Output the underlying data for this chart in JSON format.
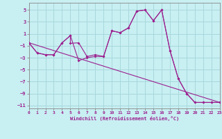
{
  "bg_color": "#c8eff2",
  "grid_color": "#a8d8dc",
  "line_color": "#9b1f8e",
  "spine_color": "#888888",
  "xlabel": "Windchill (Refroidissement éolien,°C)",
  "xlim": [
    0,
    23
  ],
  "ylim": [
    -11.5,
    6.2
  ],
  "yticks": [
    -11,
    -9,
    -7,
    -5,
    -3,
    -1,
    1,
    3,
    5
  ],
  "xticks": [
    0,
    1,
    2,
    3,
    4,
    5,
    6,
    7,
    8,
    9,
    10,
    11,
    12,
    13,
    14,
    15,
    16,
    17,
    18,
    19,
    20,
    21,
    22,
    23
  ],
  "line1_x": [
    0,
    1,
    2,
    3,
    4,
    5,
    6,
    7,
    8,
    9,
    10,
    11,
    12,
    13,
    14,
    15,
    16,
    17,
    18,
    19,
    20,
    21,
    22,
    23
  ],
  "line1_y": [
    -0.5,
    -2.2,
    -2.5,
    -2.5,
    -0.5,
    0.7,
    -3.5,
    -3.0,
    -2.8,
    -2.8,
    1.5,
    1.2,
    2.0,
    4.8,
    5.0,
    3.2,
    5.0,
    -1.8,
    -6.5,
    -9.0,
    -10.5,
    -10.5,
    -10.5,
    -10.5
  ],
  "line2_x": [
    0,
    1,
    2,
    3,
    4,
    5,
    5,
    6,
    7,
    8,
    9,
    10,
    11,
    12,
    13,
    14,
    15,
    16,
    17,
    18,
    19,
    20,
    21,
    22,
    23
  ],
  "line2_y": [
    -0.5,
    -2.2,
    -2.5,
    -2.5,
    -0.5,
    0.7,
    -0.6,
    -0.5,
    -2.8,
    -2.5,
    -2.8,
    1.5,
    1.2,
    2.0,
    4.8,
    5.0,
    3.2,
    5.0,
    -1.8,
    -6.5,
    -9.0,
    -10.5,
    -10.5,
    -10.5,
    -10.5
  ],
  "line3_x": [
    0,
    23
  ],
  "line3_y": [
    -0.5,
    -10.5
  ]
}
